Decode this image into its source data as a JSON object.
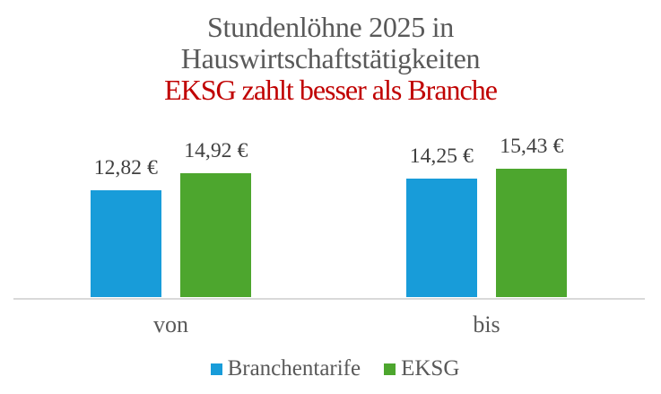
{
  "chart_data": {
    "type": "bar",
    "title": "Stundenlöhne 2025 in Hauswirtschaftstätigkeiten",
    "subtitle": "EKSG zahlt besser als Branche",
    "title_lines": [
      {
        "text": "Stundenlöhne 2025 in",
        "color": "#595959"
      },
      {
        "text": "Hauswirtschaftstätigkeiten",
        "color": "#595959"
      },
      {
        "text": "EKSG zahlt besser als Branche",
        "color": "#C00000"
      }
    ],
    "categories": [
      "von",
      "bis"
    ],
    "series": [
      {
        "name": "Branchentarife",
        "color": "#189CD9",
        "values": [
          12.82,
          14.25
        ],
        "labels": [
          "12,82 €",
          "14,25 €"
        ]
      },
      {
        "name": "EKSG",
        "color": "#4DA62E",
        "values": [
          14.92,
          15.43
        ],
        "labels": [
          "14,92 €",
          "15,43 €"
        ]
      }
    ],
    "ylabel": "",
    "xlabel": "",
    "ylim": [
      0,
      16
    ],
    "grid": false,
    "legend_position": "bottom",
    "colors": {
      "title_text": "#595959",
      "subtitle_text": "#C00000",
      "data_label_text": "#404040",
      "axis_text": "#595959",
      "legend_text": "#595959",
      "axis_line": "#D9D9D9",
      "background": "#FFFFFF"
    }
  }
}
